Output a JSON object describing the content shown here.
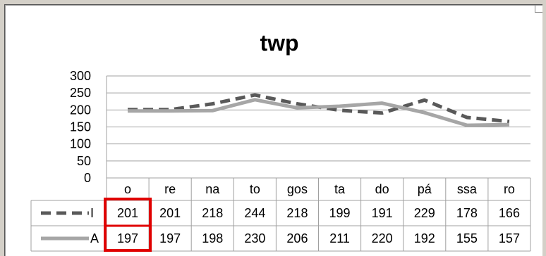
{
  "chart_data": {
    "type": "line",
    "title": "twp",
    "categories": [
      "o",
      "re",
      "na",
      "to",
      "gos",
      "ta",
      "do",
      "pá",
      "ssa",
      "ro"
    ],
    "ylim": [
      0,
      300
    ],
    "yticks": [
      0,
      50,
      100,
      150,
      200,
      250,
      300
    ],
    "grid": true,
    "legend": "data-table-left",
    "series": [
      {
        "name": "I",
        "values": [
          201,
          201,
          218,
          244,
          218,
          199,
          191,
          229,
          178,
          166
        ],
        "color": "#595959",
        "style": "dashed"
      },
      {
        "name": "A",
        "values": [
          197,
          197,
          198,
          230,
          206,
          211,
          220,
          192,
          155,
          157
        ],
        "color": "#a6a6a6",
        "style": "solid"
      }
    ],
    "highlight_color": "#e00000"
  }
}
